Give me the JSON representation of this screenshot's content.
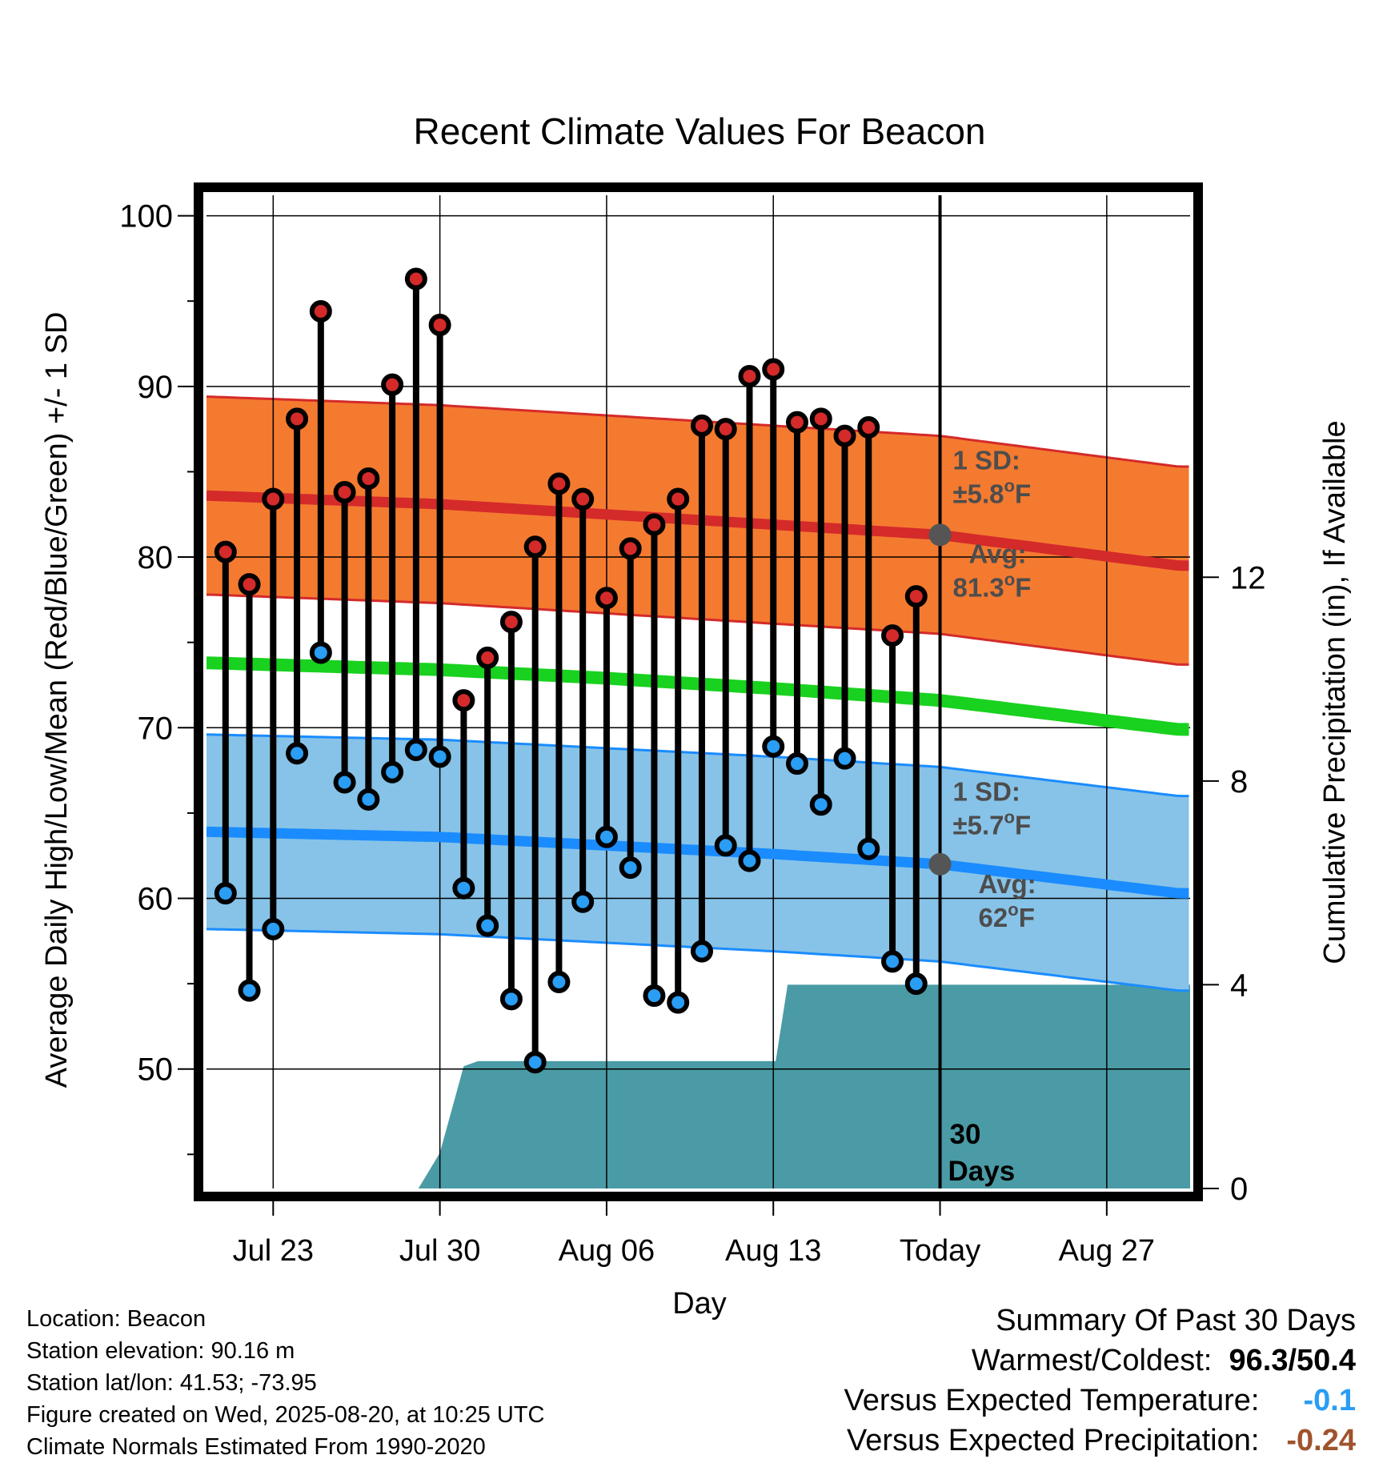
{
  "chart_data": {
    "type": "line",
    "title": "Recent Climate Values For Beacon",
    "xlabel": "Day",
    "ylabel": "Average Daily High/Low/Mean (Red/Blue/Green) +/- 1 SD",
    "y2label": "Cumulative Precipitation (in), If Available",
    "ylim": [
      43,
      101.2
    ],
    "y2lim": [
      0,
      19.5
    ],
    "yticks": [
      50,
      60,
      70,
      80,
      90,
      100
    ],
    "y2ticks": [
      0,
      4,
      8,
      12
    ],
    "xlim": [
      -30.8,
      10.5
    ],
    "xticks": [
      {
        "day": -28,
        "label": "Jul 23"
      },
      {
        "day": -21,
        "label": "Jul 30"
      },
      {
        "day": -14,
        "label": "Aug 06"
      },
      {
        "day": -7,
        "label": "Aug 13"
      },
      {
        "day": 0,
        "label": "Today"
      },
      {
        "day": 7,
        "label": "Aug 27"
      }
    ],
    "grid": true,
    "days": [
      -30,
      -29,
      -28,
      -27,
      -26,
      -25,
      -24,
      -23,
      -22,
      -21,
      -20,
      -19,
      -18,
      -17,
      -16,
      -15,
      -14,
      -13,
      -12,
      -11,
      -10,
      -9,
      -8,
      -7,
      -6,
      -5,
      -4,
      -3,
      -2,
      -1
    ],
    "highs": [
      80.3,
      78.4,
      83.4,
      88.1,
      94.4,
      83.8,
      84.6,
      90.1,
      96.3,
      93.6,
      71.6,
      74.1,
      76.2,
      80.6,
      84.3,
      83.4,
      77.6,
      80.5,
      81.9,
      83.4,
      87.7,
      87.5,
      90.6,
      91.0,
      87.9,
      88.1,
      87.1,
      87.6,
      75.4,
      77.7
    ],
    "lows": [
      60.3,
      54.6,
      58.2,
      68.5,
      74.4,
      66.8,
      65.8,
      67.4,
      68.7,
      68.3,
      60.6,
      58.4,
      54.1,
      50.4,
      55.1,
      59.8,
      63.6,
      61.8,
      54.3,
      53.9,
      56.9,
      63.1,
      62.2,
      68.9,
      67.9,
      65.5,
      68.2,
      62.9,
      56.3,
      55.0
    ],
    "normal_days": [
      -30.7,
      -21,
      -14,
      -7,
      0,
      10
    ],
    "normal_high": [
      83.6,
      83.1,
      82.5,
      81.9,
      81.3,
      79.5
    ],
    "normal_low": [
      63.9,
      63.6,
      63.1,
      62.6,
      62.0,
      60.3
    ],
    "normal_mean": [
      73.8,
      73.4,
      72.9,
      72.3,
      71.6,
      69.9
    ],
    "high_sd": 5.8,
    "low_sd": 5.7,
    "precip_days": [
      -30.8,
      -21.9,
      -21,
      -20,
      -19.4,
      -6.9,
      -6.4,
      -2,
      10.5
    ],
    "precip_cum": [
      0,
      0,
      0.7,
      2.4,
      2.5,
      2.5,
      4.0,
      4.0,
      4.0
    ],
    "annotations": {
      "high_sd_label": "1 SD:",
      "high_sd_value": "±5.8°F",
      "high_avg_label": "Avg:",
      "high_avg_value": "81.3°F",
      "low_sd_label": "1 SD:",
      "low_sd_value": "±5.7°F",
      "low_avg_label": "Avg:",
      "low_avg_value": "62°F",
      "days_label_1": "30",
      "days_label_2": "Days"
    },
    "colors": {
      "high_band": "#f47a30",
      "high_line": "#d42a2a",
      "low_band": "#87c3e8",
      "low_line": "#1a8cff",
      "mean_line": "#19d11f",
      "precip": "#4a9ba5",
      "high_marker": "#d42a2a",
      "low_marker": "#2a9df4",
      "annotation": "#4d4d4d",
      "today_marker": "#555555"
    }
  },
  "footer": {
    "location": "Location: Beacon",
    "elevation": "Station elevation: 90.16 m",
    "latlon": "Station lat/lon: 41.53; -73.95",
    "created": "Figure created on Wed, 2025-08-20, at 10:25 UTC",
    "normals": "Climate Normals Estimated From 1990-2020"
  },
  "summary": {
    "title": "Summary Of Past 30 Days",
    "warmest_label": "Warmest/Coldest:",
    "warmest_hi": "96.3",
    "warmest_sep": "/",
    "warmest_lo": "50.4",
    "temp_label": "Versus Expected Temperature:",
    "temp_value": "-0.1",
    "temp_color": "#2a9df4",
    "precip_label": "Versus Expected Precipitation:",
    "precip_value": "-0.24",
    "precip_color": "#a0522d"
  }
}
